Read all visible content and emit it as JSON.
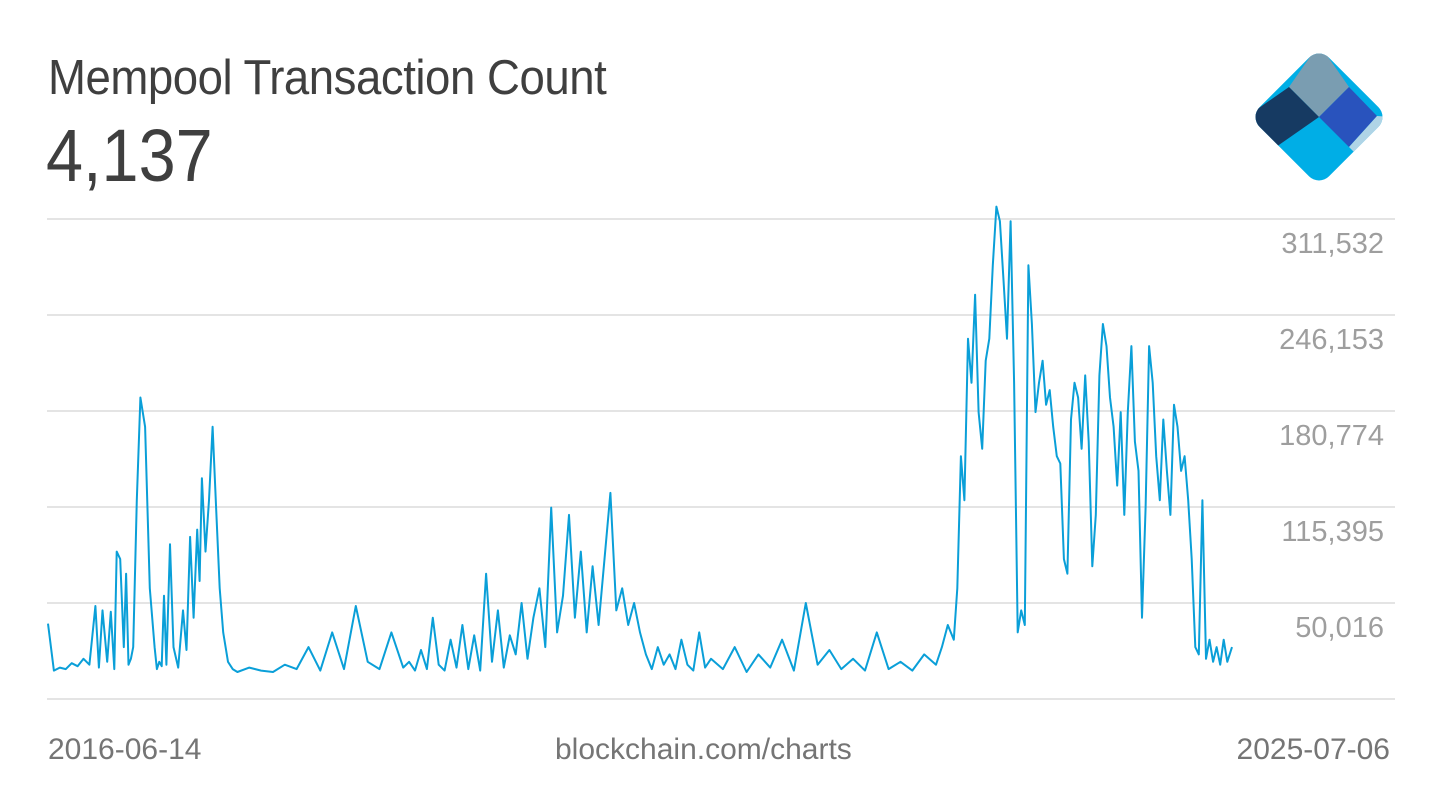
{
  "header": {
    "title": "Mempool Transaction Count",
    "current_value": "4,137"
  },
  "logo": {
    "name": "blockchain.com logo",
    "colors": {
      "top": "#7a9db1",
      "left": "#163a62",
      "right": "#2953bd",
      "far_right": "#afd4e6",
      "bottom": "#00aee6"
    }
  },
  "footer": {
    "start_date": "2016-06-14",
    "source": "blockchain.com/charts",
    "end_date": "2025-07-06"
  },
  "colors": {
    "line": "#0a9fd8",
    "grid": "#dcdcdc",
    "axis_label": "#9e9e9e",
    "title": "#3f3f3f",
    "footer": "#757575"
  },
  "chart_data": {
    "type": "line",
    "title": "Mempool Transaction Count",
    "xlabel": "",
    "ylabel": "",
    "x_start": "2016-06-14",
    "x_end": "2025-07-06",
    "y_ticks": [
      311532,
      246153,
      180774,
      115395,
      50016
    ],
    "y_tick_labels": [
      "311,532",
      "246,153",
      "180,774",
      "115,395",
      "50,016"
    ],
    "ylim": [
      -15363,
      376911
    ],
    "grid": true,
    "legend": "none",
    "series": [
      {
        "name": "Mempool Transaction Count",
        "x_frac": [
          0.0,
          0.005,
          0.01,
          0.015,
          0.02,
          0.025,
          0.03,
          0.035,
          0.04,
          0.043,
          0.046,
          0.05,
          0.053,
          0.056,
          0.058,
          0.061,
          0.064,
          0.066,
          0.068,
          0.07,
          0.072,
          0.075,
          0.078,
          0.082,
          0.086,
          0.09,
          0.092,
          0.094,
          0.096,
          0.098,
          0.1,
          0.103,
          0.106,
          0.11,
          0.114,
          0.117,
          0.12,
          0.123,
          0.126,
          0.128,
          0.13,
          0.133,
          0.136,
          0.139,
          0.142,
          0.145,
          0.148,
          0.152,
          0.156,
          0.16,
          0.17,
          0.18,
          0.19,
          0.2,
          0.21,
          0.22,
          0.23,
          0.24,
          0.25,
          0.26,
          0.27,
          0.28,
          0.29,
          0.3,
          0.305,
          0.31,
          0.315,
          0.32,
          0.325,
          0.33,
          0.335,
          0.34,
          0.345,
          0.35,
          0.355,
          0.36,
          0.365,
          0.37,
          0.375,
          0.38,
          0.385,
          0.39,
          0.395,
          0.4,
          0.405,
          0.41,
          0.415,
          0.42,
          0.425,
          0.43,
          0.435,
          0.44,
          0.445,
          0.45,
          0.455,
          0.46,
          0.465,
          0.47,
          0.475,
          0.48,
          0.485,
          0.49,
          0.495,
          0.5,
          0.505,
          0.51,
          0.515,
          0.52,
          0.525,
          0.53,
          0.535,
          0.54,
          0.545,
          0.55,
          0.555,
          0.56,
          0.57,
          0.58,
          0.59,
          0.6,
          0.61,
          0.62,
          0.63,
          0.64,
          0.65,
          0.66,
          0.67,
          0.68,
          0.69,
          0.7,
          0.71,
          0.72,
          0.73,
          0.74,
          0.75,
          0.755,
          0.76,
          0.765,
          0.768,
          0.771,
          0.774,
          0.777,
          0.78,
          0.783,
          0.786,
          0.789,
          0.792,
          0.795,
          0.798,
          0.801,
          0.804,
          0.807,
          0.81,
          0.813,
          0.816,
          0.819,
          0.822,
          0.825,
          0.828,
          0.831,
          0.834,
          0.837,
          0.84,
          0.843,
          0.846,
          0.849,
          0.852,
          0.855,
          0.858,
          0.861,
          0.864,
          0.867,
          0.87,
          0.873,
          0.876,
          0.879,
          0.882,
          0.885,
          0.888,
          0.891,
          0.894,
          0.897,
          0.9,
          0.903,
          0.906,
          0.909,
          0.912,
          0.915,
          0.918,
          0.921,
          0.924,
          0.927,
          0.93,
          0.933,
          0.936,
          0.939,
          0.942,
          0.945,
          0.948,
          0.951,
          0.954,
          0.957,
          0.96,
          0.963,
          0.966,
          0.969,
          0.972,
          0.975,
          0.978,
          0.981,
          0.984,
          0.987,
          0.99,
          0.993,
          0.996,
          1.0
        ],
        "values": [
          36000,
          4000,
          6000,
          5000,
          9000,
          7000,
          12000,
          8000,
          48000,
          6000,
          45000,
          10000,
          44000,
          5000,
          85000,
          80000,
          20000,
          70000,
          8000,
          12000,
          20000,
          120000,
          190000,
          170000,
          60000,
          20000,
          5000,
          10000,
          7000,
          55000,
          8000,
          90000,
          20000,
          6000,
          45000,
          18000,
          95000,
          40000,
          100000,
          65000,
          135000,
          85000,
          120000,
          170000,
          115000,
          60000,
          30000,
          10000,
          5000,
          3000,
          6000,
          4000,
          3000,
          8000,
          5000,
          20000,
          4000,
          30000,
          5000,
          48000,
          10000,
          5000,
          30000,
          6000,
          10000,
          4000,
          18000,
          5000,
          40000,
          8000,
          4000,
          25000,
          6000,
          35000,
          5000,
          28000,
          4000,
          70000,
          10000,
          45000,
          6000,
          28000,
          15000,
          50000,
          12000,
          40000,
          60000,
          20000,
          115000,
          30000,
          55000,
          110000,
          40000,
          85000,
          30000,
          75000,
          35000,
          80000,
          125000,
          45000,
          60000,
          35000,
          50000,
          30000,
          15000,
          5000,
          20000,
          8000,
          15000,
          5000,
          25000,
          8000,
          4000,
          30000,
          6000,
          12000,
          5000,
          20000,
          3000,
          15000,
          6000,
          25000,
          4000,
          50000,
          8000,
          18000,
          5000,
          12000,
          4000,
          30000,
          5000,
          10000,
          4000,
          15000,
          8000,
          20000,
          35000,
          25000,
          60000,
          150000,
          120000,
          230000,
          200000,
          260000,
          180000,
          155000,
          215000,
          230000,
          280000,
          320000,
          310000,
          270000,
          230000,
          310000,
          200000,
          30000,
          45000,
          35000,
          280000,
          240000,
          180000,
          200000,
          215000,
          185000,
          195000,
          170000,
          150000,
          145000,
          80000,
          70000,
          175000,
          200000,
          190000,
          155000,
          205000,
          160000,
          75000,
          110000,
          205000,
          240000,
          225000,
          190000,
          170000,
          130000,
          180000,
          110000,
          180000,
          225000,
          160000,
          140000,
          40000,
          115000,
          225000,
          200000,
          150000,
          120000,
          175000,
          140000,
          110000,
          185000,
          170000,
          140000,
          150000,
          120000,
          80000,
          20000,
          15000,
          120000,
          12000,
          25000,
          10000,
          20000,
          8000,
          25000,
          10000,
          20000,
          6000,
          18000,
          4137
        ]
      }
    ]
  }
}
